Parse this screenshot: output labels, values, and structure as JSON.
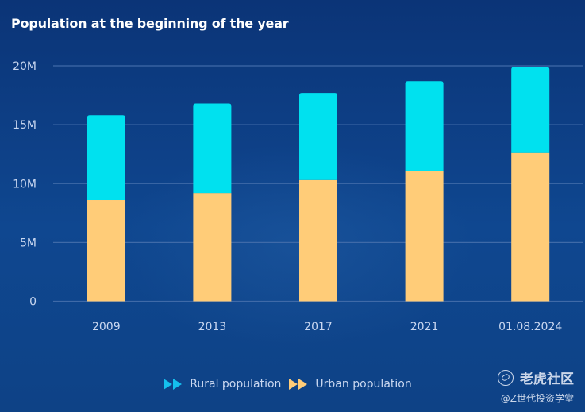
{
  "chart_data": {
    "type": "bar",
    "stacked": true,
    "title": "Population at the beginning of the year",
    "xlabel": "",
    "ylabel": "",
    "categories": [
      "2009",
      "2013",
      "2017",
      "2021",
      "01.08.2024"
    ],
    "series": [
      {
        "name": "Urban population",
        "color": "#ffcc78",
        "values": [
          8.6,
          9.2,
          10.3,
          11.1,
          12.6
        ]
      },
      {
        "name": "Rural population",
        "color": "#00e1ef",
        "values": [
          7.2,
          7.6,
          7.4,
          7.6,
          7.3
        ]
      }
    ],
    "units": "M",
    "ylim": [
      0,
      20
    ],
    "yticks": [
      0,
      5,
      10,
      15,
      20
    ],
    "ytick_labels": [
      "0",
      "5M",
      "10M",
      "15M",
      "20M"
    ],
    "grid": true,
    "legend": {
      "placement": "bottom-center",
      "entries": [
        {
          "label": "Rural population",
          "color": "#14c0ee"
        },
        {
          "label": "Urban population",
          "color": "#ffcc78"
        }
      ]
    }
  },
  "colors": {
    "background_top": "#0b3477",
    "background_bottom": "#0f4790",
    "gridline": "#3f6aa8",
    "tick_text": "#c9d7f0"
  },
  "watermark": {
    "brand": "老虎社区",
    "handle": "@Z世代投资学堂"
  }
}
